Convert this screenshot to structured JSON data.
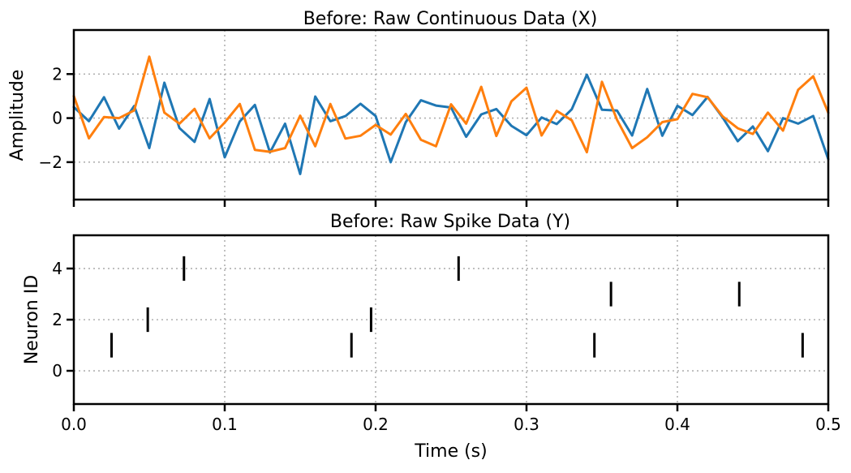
{
  "chart_data": [
    {
      "type": "line",
      "title": "Before: Raw Continuous Data (X)",
      "xlabel": "",
      "ylabel": "Amplitude",
      "xlim": [
        0,
        0.5
      ],
      "ylim": [
        -3.7,
        4.0
      ],
      "xticks": [
        0.0,
        0.1,
        0.2,
        0.3,
        0.4,
        0.5
      ],
      "yticks": [
        -2,
        0,
        2
      ],
      "ytick_labels": [
        "−2",
        "0",
        "2"
      ],
      "grid": true,
      "x": [
        0.0,
        0.01,
        0.02,
        0.03,
        0.04,
        0.05,
        0.06,
        0.07,
        0.08,
        0.09,
        0.1,
        0.11,
        0.12,
        0.13,
        0.14,
        0.15,
        0.16,
        0.17,
        0.18,
        0.19,
        0.2,
        0.21,
        0.22,
        0.23,
        0.24,
        0.25,
        0.26,
        0.27,
        0.28,
        0.29,
        0.3,
        0.31,
        0.32,
        0.33,
        0.34,
        0.35,
        0.36,
        0.37,
        0.38,
        0.39,
        0.4,
        0.41,
        0.42,
        0.43,
        0.44,
        0.45,
        0.46,
        0.47,
        0.48,
        0.49,
        0.5
      ],
      "series": [
        {
          "color": "#1f77b4",
          "values": [
            0.5,
            -0.14,
            0.95,
            -0.48,
            0.55,
            -1.36,
            1.61,
            -0.45,
            -1.08,
            0.87,
            -1.78,
            -0.15,
            0.6,
            -1.56,
            -0.25,
            -2.54,
            0.98,
            -0.14,
            0.09,
            0.65,
            0.1,
            -2.0,
            -0.18,
            0.81,
            0.57,
            0.48,
            -0.85,
            0.17,
            0.41,
            -0.35,
            -0.78,
            0.03,
            -0.27,
            0.4,
            1.97,
            0.38,
            0.34,
            -0.79,
            1.32,
            -0.8,
            0.56,
            0.14,
            0.96,
            0.03,
            -1.05,
            -0.38,
            -1.5,
            0.0,
            -0.25,
            0.1,
            -1.87
          ]
        },
        {
          "color": "#ff7f0e",
          "values": [
            1.0,
            -0.92,
            0.05,
            0.0,
            0.35,
            2.79,
            0.25,
            -0.25,
            0.42,
            -0.92,
            -0.2,
            0.64,
            -1.44,
            -1.53,
            -1.36,
            0.11,
            -1.28,
            0.64,
            -0.93,
            -0.8,
            -0.31,
            -0.75,
            0.19,
            -0.98,
            -1.28,
            0.63,
            -0.25,
            1.42,
            -0.81,
            0.76,
            1.38,
            -0.79,
            0.33,
            -0.1,
            -1.55,
            1.65,
            -0.08,
            -1.36,
            -0.87,
            -0.18,
            -0.05,
            1.1,
            0.95,
            0.08,
            -0.46,
            -0.72,
            0.25,
            -0.57,
            1.28,
            1.9,
            0.24
          ]
        }
      ]
    },
    {
      "type": "scatter",
      "marker": "vertical-line",
      "title": "Before: Raw Spike Data (Y)",
      "xlabel": "Time (s)",
      "ylabel": "Neuron ID",
      "xlim": [
        0,
        0.5
      ],
      "ylim": [
        -1.3,
        5.3
      ],
      "xticks": [
        0.0,
        0.1,
        0.2,
        0.3,
        0.4,
        0.5
      ],
      "xtick_labels": [
        "0.0",
        "0.1",
        "0.2",
        "0.3",
        "0.4",
        "0.5"
      ],
      "yticks": [
        0,
        2,
        4
      ],
      "ytick_labels": [
        "0",
        "2",
        "4"
      ],
      "grid": true,
      "color": "#000000",
      "spikes": [
        {
          "t": 0.025,
          "neuron": 1
        },
        {
          "t": 0.049,
          "neuron": 2
        },
        {
          "t": 0.073,
          "neuron": 4
        },
        {
          "t": 0.184,
          "neuron": 1
        },
        {
          "t": 0.197,
          "neuron": 2
        },
        {
          "t": 0.255,
          "neuron": 4
        },
        {
          "t": 0.345,
          "neuron": 1
        },
        {
          "t": 0.356,
          "neuron": 3
        },
        {
          "t": 0.441,
          "neuron": 3
        },
        {
          "t": 0.483,
          "neuron": 1
        }
      ]
    }
  ]
}
